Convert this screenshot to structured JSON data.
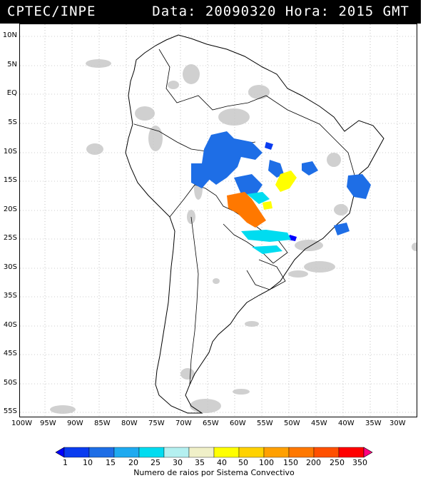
{
  "header": {
    "org": "CPTEC/INPE",
    "info": "Data: 20090320 Hora: 2015 GMT"
  },
  "map": {
    "lat_labels": [
      "10N",
      "5N",
      "EQ",
      "5S",
      "10S",
      "15S",
      "20S",
      "25S",
      "30S",
      "35S",
      "40S",
      "45S",
      "50S",
      "55S"
    ],
    "lon_labels": [
      "100W",
      "95W",
      "90W",
      "85W",
      "80W",
      "75W",
      "70W",
      "65W",
      "60W",
      "55W",
      "50W",
      "45W",
      "40W",
      "35W",
      "30W"
    ]
  },
  "legend": {
    "values": [
      "1",
      "10",
      "15",
      "20",
      "25",
      "30",
      "35",
      "40",
      "50",
      "100",
      "150",
      "200",
      "250",
      "350"
    ],
    "colors": [
      "#0000ff",
      "#0a3cf0",
      "#1e6ee6",
      "#1eaaf0",
      "#00dcf0",
      "#b4f0f0",
      "#f0f0c8",
      "#ffff00",
      "#ffd200",
      "#ffa000",
      "#ff7800",
      "#ff5000",
      "#ff0000",
      "#ff0080"
    ],
    "caption": "Numero de raios por Sistema Convectivo"
  }
}
